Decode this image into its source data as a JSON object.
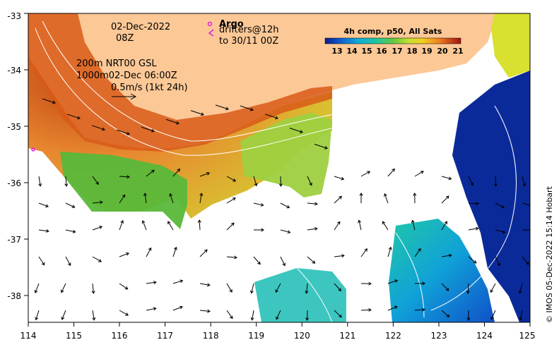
{
  "map": {
    "axes": {
      "x_ticks": [
        "114",
        "115",
        "116",
        "117",
        "118",
        "119",
        "120",
        "121",
        "122",
        "123",
        "124",
        "125"
      ],
      "y_ticks": [
        "-33",
        "-34",
        "-35",
        "-36",
        "-37",
        "-38"
      ]
    },
    "annotations": {
      "date_line1": "02-Dec-2022",
      "date_line2": "08Z",
      "depth_line1": "200m  NRT00 GSL",
      "depth_line2": "1000m02-Dec 06:00Z",
      "scale_label": "0.5m/s (1kt 24h)",
      "argo_title": "Argo",
      "drifters_line1": "drifters@12h",
      "drifters_line2": "to 30/11 00Z"
    },
    "colorbar": {
      "title": "4h comp, p50, All Sats",
      "ticks": [
        "13",
        "14",
        "15",
        "16",
        "17",
        "18",
        "19",
        "20",
        "21"
      ]
    },
    "credit": "© IMOS 05-Dec-2022 15:14 Hobart",
    "colors": {
      "land": "#fbc896",
      "warm": "#b03a12",
      "cool": "#0b2a9a",
      "argo": "#e020e0"
    }
  }
}
